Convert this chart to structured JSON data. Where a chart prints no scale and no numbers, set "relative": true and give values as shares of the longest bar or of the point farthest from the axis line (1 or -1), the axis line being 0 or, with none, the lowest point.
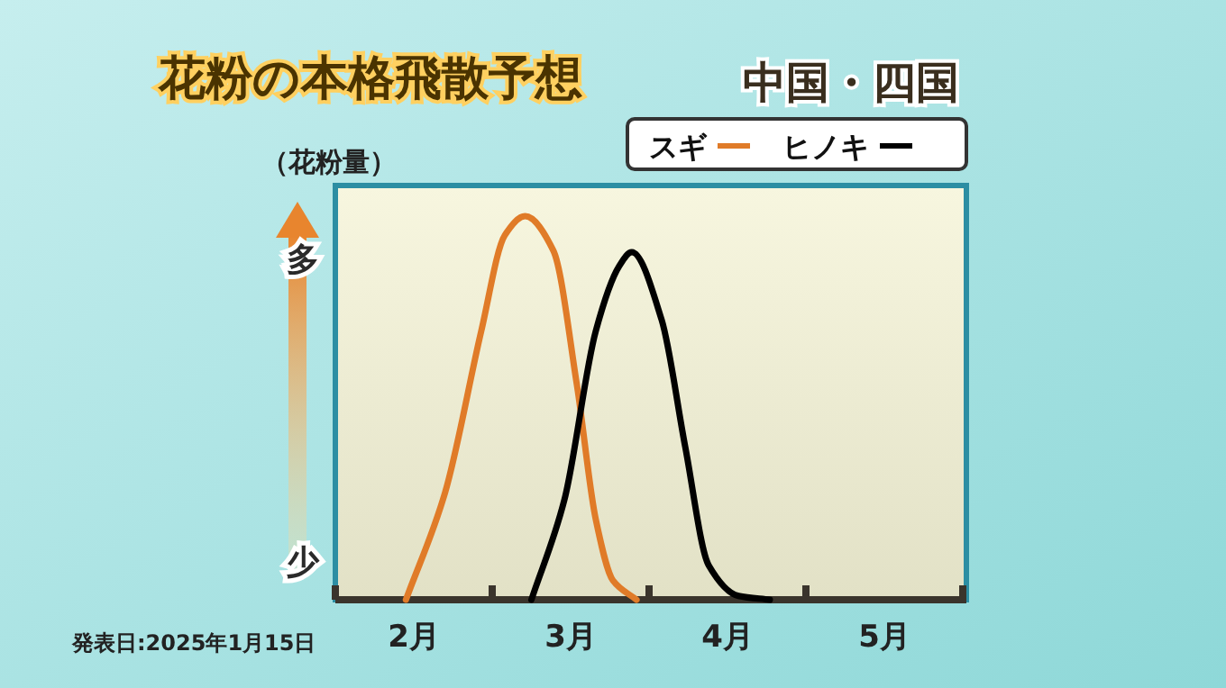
{
  "chart_data": {
    "type": "line",
    "title": "花粉の本格飛散予想",
    "subtitle": "中国・四国",
    "ylabel": "（花粉量）",
    "relative": true,
    "legend": "top right",
    "marker": "none",
    "line_style": "solid",
    "grid": false,
    "xlim": [
      2,
      6
    ],
    "xticks": [
      {
        "value": 2,
        "label": null
      },
      {
        "value": 3,
        "label": null
      },
      {
        "value": 4,
        "label": null
      },
      {
        "value": 5,
        "label": null
      },
      {
        "value": 6,
        "label": null
      },
      {
        "value": 2.5,
        "label": "2月"
      },
      {
        "value": 3.5,
        "label": "3月"
      },
      {
        "value": 4.5,
        "label": "4月"
      },
      {
        "value": 5.5,
        "label": "5月"
      }
    ],
    "annotations": [
      "多",
      "少",
      "発表日:2025年1月15日"
    ],
    "series": [
      {
        "name": "スギ",
        "color": "#e07b28",
        "x": [
          2.45,
          2.7,
          2.93,
          3.08,
          3.21,
          3.39,
          3.54,
          3.66,
          3.77,
          3.92
        ],
        "values": [
          0,
          0.28,
          0.7,
          0.95,
          1,
          0.91,
          0.56,
          0.21,
          0.05,
          0
        ]
      },
      {
        "name": "ヒノキ",
        "color": "#000000",
        "x": [
          3.25,
          3.46,
          3.66,
          3.81,
          3.89,
          4.08,
          4.23,
          4.38,
          4.57,
          4.77
        ],
        "values": [
          0,
          0.26,
          0.7,
          0.87,
          0.906,
          0.73,
          0.4,
          0.09,
          0.01,
          0
        ]
      }
    ]
  }
}
